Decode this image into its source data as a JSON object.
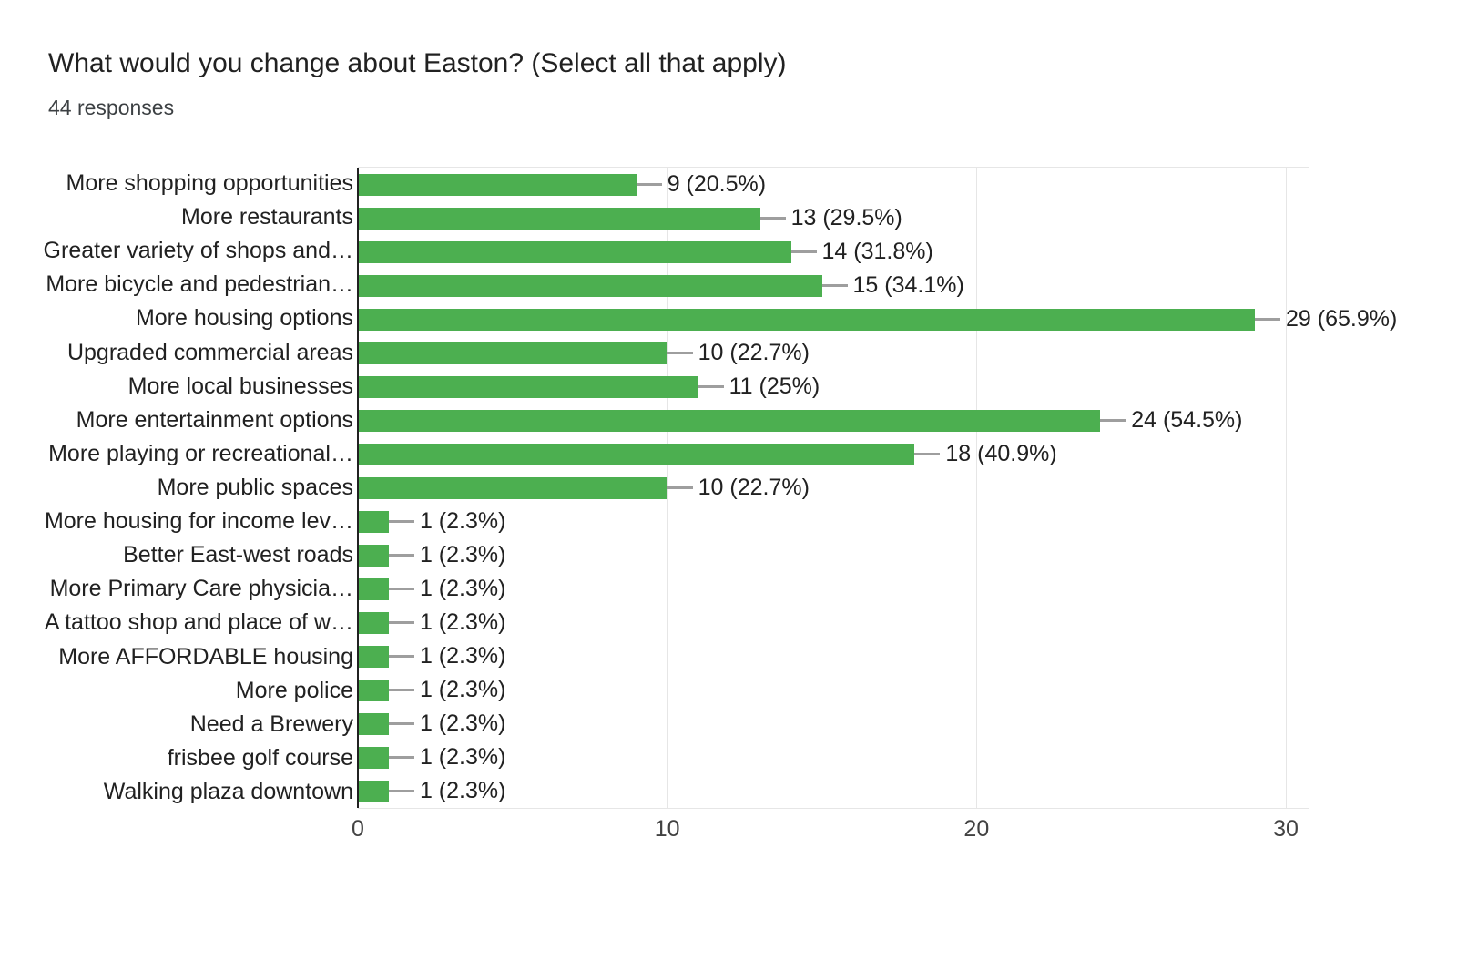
{
  "header": {
    "title": "What would you change about Easton? (Select all that apply)",
    "subtitle": "44 responses"
  },
  "chart_data": {
    "type": "bar",
    "orientation": "horizontal",
    "title": "What would you change about Easton? (Select all that apply)",
    "subtitle": "44 responses",
    "categories": [
      "More shopping opportunities",
      "More restaurants",
      "Greater variety of shops and…",
      "More bicycle and pedestrian…",
      "More housing options",
      "Upgraded commercial areas",
      "More local businesses",
      "More entertainment options",
      "More playing or recreational…",
      "More public spaces",
      "More housing for income lev…",
      "Better East-west roads",
      "More Primary Care physicia…",
      "A tattoo shop and place of w…",
      "More AFFORDABLE housing",
      "More police",
      "Need a Brewery",
      "frisbee golf course",
      "Walking plaza downtown"
    ],
    "values": [
      9,
      13,
      14,
      15,
      29,
      10,
      11,
      24,
      18,
      10,
      1,
      1,
      1,
      1,
      1,
      1,
      1,
      1,
      1
    ],
    "value_labels": [
      "9 (20.5%)",
      "13 (29.5%)",
      "14 (31.8%)",
      "15 (34.1%)",
      "29 (65.9%)",
      "10 (22.7%)",
      "11 (25%)",
      "24 (54.5%)",
      "18 (40.9%)",
      "10 (22.7%)",
      "1 (2.3%)",
      "1 (2.3%)",
      "1 (2.3%)",
      "1 (2.3%)",
      "1 (2.3%)",
      "1 (2.3%)",
      "1 (2.3%)",
      "1 (2.3%)",
      "1 (2.3%)"
    ],
    "x_ticks": [
      0,
      10,
      20,
      30
    ],
    "xlim": [
      0,
      30.8
    ],
    "grid": true,
    "legend": "none",
    "colors": {
      "bar": "#4caf50",
      "axis": "#212121",
      "gridline": "#e6e6e6",
      "connector": "#9e9e9e",
      "text": "#212121"
    }
  }
}
